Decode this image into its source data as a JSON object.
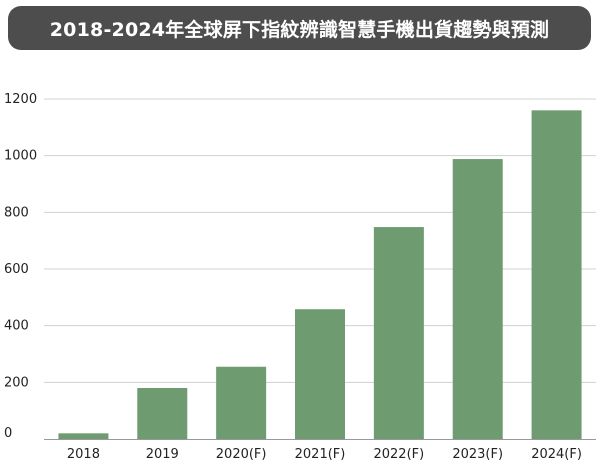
{
  "chart_data": {
    "type": "bar",
    "title": "2018-2024年全球屏下指紋辨識智慧手機出貨趨勢與預測",
    "xlabel": "",
    "ylabel": "",
    "categories": [
      "2018",
      "2019",
      "2020(F)",
      "2021(F)",
      "2022(F)",
      "2023(F)",
      "2024(F)"
    ],
    "values": [
      20,
      180,
      255,
      458,
      748,
      988,
      1160
    ],
    "ylim": [
      0,
      1200
    ],
    "yticks": [
      0,
      200,
      400,
      600,
      800,
      1000,
      1200
    ],
    "grid": true,
    "legend": "none",
    "colors": {
      "bar": "#6e9b70",
      "grid": "#d0d0d0",
      "axis": "#999999",
      "title_bg": "#4d4d4d",
      "title_text": "#ffffff"
    }
  }
}
